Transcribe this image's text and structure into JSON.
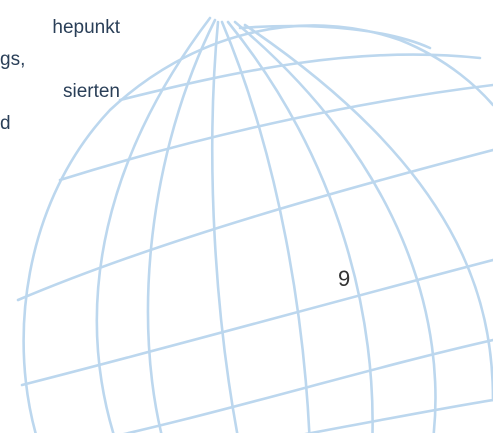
{
  "body_text_lines": [
    "hepunkt",
    "gs,",
    "sierten",
    "d"
  ],
  "page_number": "9",
  "colors": {
    "globe_lines": "#bcd7ee",
    "text": "#2a3f58",
    "page_number": "#333333"
  }
}
